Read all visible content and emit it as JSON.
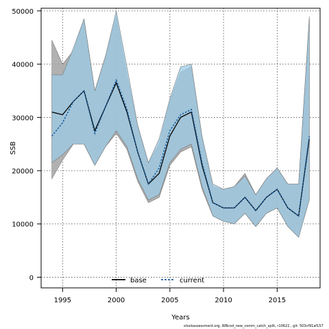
{
  "chart_data": {
    "type": "line",
    "xlabel": "Years",
    "ylabel": "SSB",
    "xlim": [
      1993.0,
      2019.0
    ],
    "ylim": [
      -2000,
      50500
    ],
    "x_ticks": [
      1995,
      2000,
      2005,
      2010,
      2015
    ],
    "y_ticks": [
      0,
      10000,
      20000,
      30000,
      40000,
      50000
    ],
    "y_tick_labels": [
      "0",
      "10000",
      "20000",
      "30000",
      "40000",
      "50000"
    ],
    "grid": true,
    "legend_position": "bottom-center",
    "x": [
      1994,
      1995,
      1996,
      1997,
      1998,
      1999,
      2000,
      2001,
      2002,
      2003,
      2004,
      2005,
      2006,
      2007,
      2008,
      2009,
      2010,
      2011,
      2012,
      2013,
      2014,
      2015,
      2016,
      2017,
      2018
    ],
    "series": [
      {
        "name": "base",
        "color": "#000000",
        "band_color": "#a3a3a3",
        "line_style": "solid",
        "values": [
          31000,
          30500,
          33000,
          35000,
          27500,
          32000,
          36500,
          31000,
          23500,
          17500,
          19500,
          26500,
          30000,
          31000,
          21000,
          14000,
          13000,
          13000,
          15000,
          12500,
          15000,
          16500,
          13000,
          11500,
          26000
        ],
        "upper": [
          44500,
          40000,
          42500,
          48500,
          35000,
          41500,
          49000,
          38000,
          28500,
          21500,
          25000,
          33000,
          38500,
          39500,
          26000,
          17000,
          16500,
          17000,
          19500,
          15500,
          18500,
          20500,
          17500,
          17500,
          48500
        ],
        "lower": [
          18500,
          22000,
          25000,
          25000,
          21000,
          24500,
          27000,
          24000,
          18000,
          14000,
          15000,
          21000,
          23500,
          24500,
          16500,
          11500,
          10500,
          10000,
          12000,
          9500,
          12000,
          13000,
          9500,
          7500,
          15000
        ]
      },
      {
        "name": "current",
        "color": "#1a5fa0",
        "band_color": "#9ccbe6",
        "line_style": "dashed",
        "values": [
          26500,
          29000,
          33000,
          35000,
          27000,
          32000,
          37000,
          31500,
          23500,
          17500,
          20500,
          27500,
          30500,
          31500,
          21500,
          14000,
          13000,
          13000,
          15000,
          12500,
          15000,
          16500,
          13000,
          11500,
          26500
        ],
        "upper": [
          38000,
          38000,
          43000,
          48500,
          35000,
          41500,
          50000,
          39500,
          28500,
          21500,
          26000,
          33500,
          39500,
          40000,
          26500,
          17500,
          16500,
          17000,
          19000,
          15500,
          18500,
          20500,
          17500,
          17500,
          49000
        ],
        "lower": [
          21500,
          23000,
          25000,
          25000,
          21000,
          24500,
          27500,
          24500,
          18500,
          14500,
          15500,
          21500,
          24000,
          25000,
          17000,
          11500,
          10500,
          10000,
          12000,
          9500,
          12000,
          13000,
          9500,
          7500,
          14500
        ]
      }
    ]
  },
  "footer_text": "stockassessment.org, WBcod_new_comm_catch_split, r10622 , git: 503cf91af157"
}
